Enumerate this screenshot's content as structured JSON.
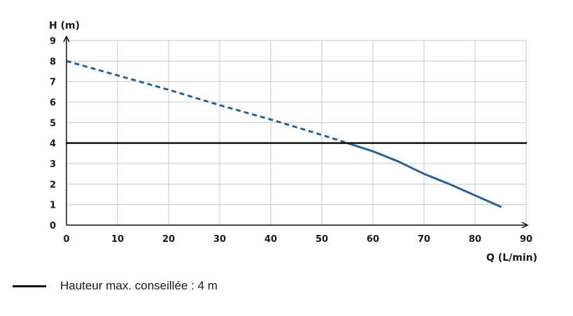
{
  "chart_data": {
    "type": "line",
    "xlabel": "Q (L/min)",
    "ylabel": "H (m)",
    "xlim": [
      0,
      90
    ],
    "ylim": [
      0,
      9
    ],
    "x_ticks": [
      0,
      10,
      20,
      30,
      40,
      50,
      60,
      70,
      80,
      90
    ],
    "y_ticks": [
      0,
      1,
      2,
      3,
      4,
      5,
      6,
      7,
      8,
      9
    ],
    "grid": true,
    "legend_position": "bottom-left",
    "series": [
      {
        "style": "dashed",
        "color": "#2a6394",
        "x": [
          0,
          10,
          20,
          30,
          40,
          50,
          55
        ],
        "y": [
          8.0,
          7.3,
          6.6,
          5.85,
          5.15,
          4.4,
          4.0
        ]
      },
      {
        "style": "solid",
        "color": "#2a6394",
        "x": [
          55,
          60,
          65,
          70,
          75,
          80,
          85
        ],
        "y": [
          4.0,
          3.6,
          3.1,
          2.5,
          2.0,
          1.45,
          0.9
        ]
      },
      {
        "name": "Hauteur max. conseillée : 4 m",
        "style": "solid",
        "color": "#111111",
        "x": [
          0,
          90
        ],
        "y": [
          4,
          4
        ]
      }
    ]
  },
  "legend": {
    "label": "Hauteur max. conseillée : 4 m"
  }
}
